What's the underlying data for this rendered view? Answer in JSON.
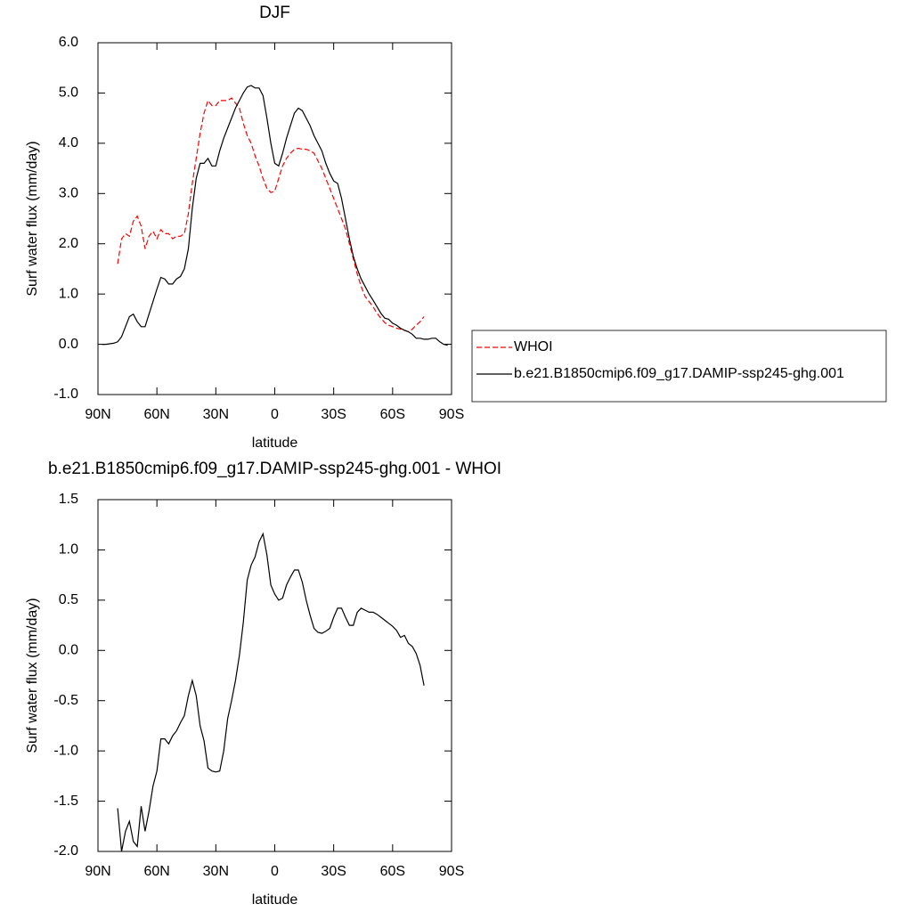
{
  "chart_data": [
    {
      "type": "line",
      "title": "DJF",
      "xlabel": "latitude",
      "ylabel": "Surf water flux (mm/day)",
      "x": [
        88,
        86,
        84,
        82,
        80,
        78,
        76,
        74,
        72,
        70,
        68,
        66,
        64,
        62,
        60,
        58,
        56,
        54,
        52,
        50,
        48,
        46,
        44,
        42,
        40,
        38,
        36,
        34,
        32,
        30,
        28,
        26,
        24,
        22,
        20,
        18,
        16,
        14,
        12,
        10,
        8,
        6,
        4,
        2,
        0,
        -2,
        -4,
        -6,
        -8,
        -10,
        -12,
        -14,
        -16,
        -18,
        -20,
        -22,
        -24,
        -26,
        -28,
        -30,
        -32,
        -34,
        -36,
        -38,
        -40,
        -42,
        -44,
        -46,
        -48,
        -50,
        -52,
        -54,
        -56,
        -58,
        -60,
        -62,
        -64,
        -66,
        -68,
        -70,
        -72,
        -74,
        -76,
        -78,
        -80,
        -82,
        -84,
        -86,
        -88
      ],
      "series": [
        {
          "name": "WHOI",
          "color": "#ff0000",
          "dash": true,
          "values": [
            null,
            null,
            null,
            null,
            1.6,
            2.1,
            2.2,
            2.15,
            2.45,
            2.55,
            2.35,
            1.9,
            2.15,
            2.25,
            2.1,
            2.28,
            2.2,
            2.2,
            2.1,
            2.15,
            2.15,
            2.2,
            2.6,
            3.2,
            3.7,
            4.2,
            4.6,
            4.85,
            4.75,
            4.75,
            4.85,
            4.85,
            4.85,
            4.9,
            4.8,
            4.7,
            4.4,
            4.15,
            4.0,
            3.75,
            3.55,
            3.3,
            3.1,
            3.02,
            3.05,
            3.3,
            3.55,
            3.7,
            3.8,
            3.88,
            3.9,
            3.88,
            3.88,
            3.85,
            3.8,
            3.65,
            3.5,
            3.3,
            3.1,
            2.9,
            2.7,
            2.5,
            2.3,
            2.0,
            1.7,
            1.4,
            1.15,
            0.95,
            0.85,
            0.75,
            0.62,
            0.52,
            0.43,
            0.38,
            0.35,
            0.32,
            0.3,
            0.28,
            0.25,
            0.3,
            0.38,
            0.45,
            0.55,
            null,
            null,
            null,
            null,
            null,
            null
          ]
        },
        {
          "name": "b.e21.B1850cmip6.f09_g17.DAMIP-ssp245-ghg.001",
          "color": "#000000",
          "dash": false,
          "values": [
            0,
            0,
            0.01,
            0.02,
            0.05,
            0.15,
            0.35,
            0.55,
            0.6,
            0.45,
            0.35,
            0.35,
            0.6,
            0.85,
            1.1,
            1.33,
            1.3,
            1.2,
            1.2,
            1.3,
            1.35,
            1.5,
            1.9,
            2.7,
            3.3,
            3.6,
            3.6,
            3.7,
            3.55,
            3.55,
            3.85,
            4.1,
            4.3,
            4.5,
            4.7,
            4.85,
            5.0,
            5.12,
            5.15,
            5.1,
            5.1,
            4.95,
            4.5,
            4.0,
            3.6,
            3.55,
            3.8,
            4.1,
            4.35,
            4.6,
            4.7,
            4.65,
            4.5,
            4.35,
            4.15,
            4.0,
            3.85,
            3.6,
            3.4,
            3.25,
            3.2,
            2.9,
            2.5,
            2.1,
            1.75,
            1.5,
            1.3,
            1.15,
            1.0,
            0.88,
            0.75,
            0.62,
            0.52,
            0.5,
            0.42,
            0.38,
            0.32,
            0.28,
            0.25,
            0.2,
            0.12,
            0.12,
            0.1,
            0.1,
            0.12,
            0.12,
            0.05,
            0.0,
            -0.02
          ]
        }
      ],
      "xlim": [
        90,
        -90
      ],
      "xticks": [
        {
          "value": 90,
          "label": "90N"
        },
        {
          "value": 60,
          "label": "60N"
        },
        {
          "value": 30,
          "label": "30N"
        },
        0,
        {
          "value": -30,
          "label": "30S"
        },
        {
          "value": -60,
          "label": "60S"
        },
        {
          "value": -90,
          "label": "90S"
        }
      ],
      "ylim": [
        -1,
        6
      ],
      "yticks": [
        {
          "value": -1,
          "label": "-1.0"
        },
        {
          "value": 0,
          "label": "0.0"
        },
        {
          "value": 1,
          "label": "1.0"
        },
        {
          "value": 2,
          "label": "2.0"
        },
        {
          "value": 3,
          "label": "3.0"
        },
        {
          "value": 4,
          "label": "4.0"
        },
        {
          "value": 5,
          "label": "5.0"
        },
        {
          "value": 6,
          "label": "6.0"
        }
      ]
    },
    {
      "type": "line",
      "title": "b.e21.B1850cmip6.f09_g17.DAMIP-ssp245-ghg.001 - WHOI",
      "xlabel": "latitude",
      "ylabel": "Surf water flux (mm/day)",
      "x": [
        80,
        78,
        76,
        74,
        72,
        70,
        68,
        66,
        64,
        62,
        60,
        58,
        56,
        54,
        52,
        50,
        48,
        46,
        44,
        42,
        40,
        38,
        36,
        34,
        32,
        30,
        28,
        26,
        24,
        22,
        20,
        18,
        16,
        14,
        12,
        10,
        8,
        6,
        4,
        2,
        0,
        -2,
        -4,
        -6,
        -8,
        -10,
        -12,
        -14,
        -16,
        -18,
        -20,
        -22,
        -24,
        -26,
        -28,
        -30,
        -32,
        -34,
        -36,
        -38,
        -40,
        -42,
        -44,
        -46,
        -48,
        -50,
        -52,
        -54,
        -56,
        -58,
        -60,
        -62,
        -64,
        -66,
        -68,
        -70,
        -72,
        -74,
        -76
      ],
      "series": [
        {
          "color": "#000000",
          "dash": false,
          "values": [
            -1.57,
            -2.0,
            -1.8,
            -1.7,
            -1.9,
            -1.95,
            -1.55,
            -1.8,
            -1.6,
            -1.35,
            -1.2,
            -0.88,
            -0.88,
            -0.93,
            -0.85,
            -0.8,
            -0.72,
            -0.65,
            -0.45,
            -0.3,
            -0.45,
            -0.75,
            -0.9,
            -1.17,
            -1.2,
            -1.21,
            -1.2,
            -1.0,
            -0.68,
            -0.5,
            -0.3,
            -0.05,
            0.28,
            0.7,
            0.85,
            0.93,
            1.08,
            1.16,
            0.95,
            0.65,
            0.56,
            0.5,
            0.52,
            0.65,
            0.73,
            0.8,
            0.8,
            0.68,
            0.5,
            0.35,
            0.22,
            0.18,
            0.17,
            0.19,
            0.22,
            0.33,
            0.42,
            0.42,
            0.33,
            0.25,
            0.25,
            0.38,
            0.42,
            0.4,
            0.38,
            0.38,
            0.36,
            0.33,
            0.3,
            0.27,
            0.24,
            0.2,
            0.13,
            0.15,
            0.07,
            0.04,
            -0.03,
            -0.15,
            -0.35
          ]
        }
      ],
      "xlim": [
        90,
        -90
      ],
      "xticks": [
        {
          "value": 90,
          "label": "90N"
        },
        {
          "value": 60,
          "label": "60N"
        },
        {
          "value": 30,
          "label": "30N"
        },
        0,
        {
          "value": -30,
          "label": "30S"
        },
        {
          "value": -60,
          "label": "60S"
        },
        {
          "value": -90,
          "label": "90S"
        }
      ],
      "ylim": [
        -2,
        1.5
      ],
      "yticks": [
        {
          "value": -2,
          "label": "-2.0"
        },
        -1.5,
        {
          "value": -1,
          "label": "-1.0"
        },
        -0.5,
        {
          "value": 0,
          "label": "0.0"
        },
        0.5,
        {
          "value": 1,
          "label": "1.0"
        },
        1.5
      ]
    }
  ]
}
